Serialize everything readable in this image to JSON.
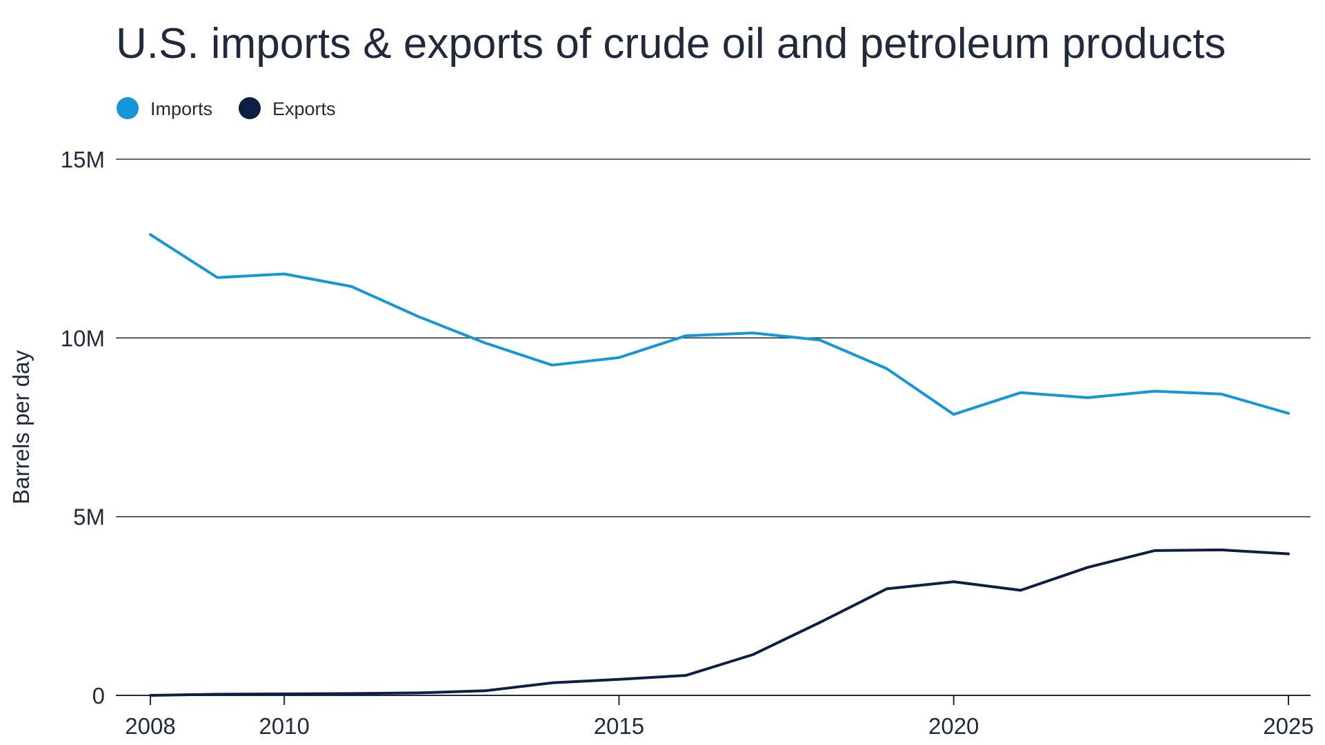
{
  "chart_data": {
    "type": "line",
    "title": "U.S. imports & exports of crude oil and petroleum products",
    "xlabel": "",
    "ylabel": "Barrels per day",
    "x": [
      2008,
      2009,
      2010,
      2011,
      2012,
      2013,
      2014,
      2015,
      2016,
      2017,
      2018,
      2019,
      2020,
      2021,
      2022,
      2023,
      2024,
      2025
    ],
    "xticks": [
      2008,
      2010,
      2015,
      2020,
      2025
    ],
    "xtick_labels": [
      "2008",
      "2010",
      "2015",
      "2020",
      "2025"
    ],
    "xlim": [
      2008,
      2025
    ],
    "ylim": [
      0,
      15000000
    ],
    "yticks": [
      0,
      5000000,
      10000000,
      15000000
    ],
    "ytick_labels": [
      "0",
      "5M",
      "10M",
      "15M"
    ],
    "grid": "horizontal",
    "legend_position": "top-left",
    "series": [
      {
        "name": "Imports",
        "color": "#1496d8",
        "values": [
          12890000,
          11690000,
          11790000,
          11440000,
          10600000,
          9860000,
          9240000,
          9450000,
          10060000,
          10140000,
          9940000,
          9140000,
          7860000,
          8470000,
          8330000,
          8510000,
          8430000,
          7890000
        ]
      },
      {
        "name": "Exports",
        "color": "#0d1f45",
        "values": [
          0,
          30000,
          40000,
          50000,
          70000,
          130000,
          350000,
          450000,
          560000,
          1140000,
          2040000,
          2980000,
          3180000,
          2940000,
          3580000,
          4050000,
          4070000,
          3960000
        ]
      }
    ]
  }
}
